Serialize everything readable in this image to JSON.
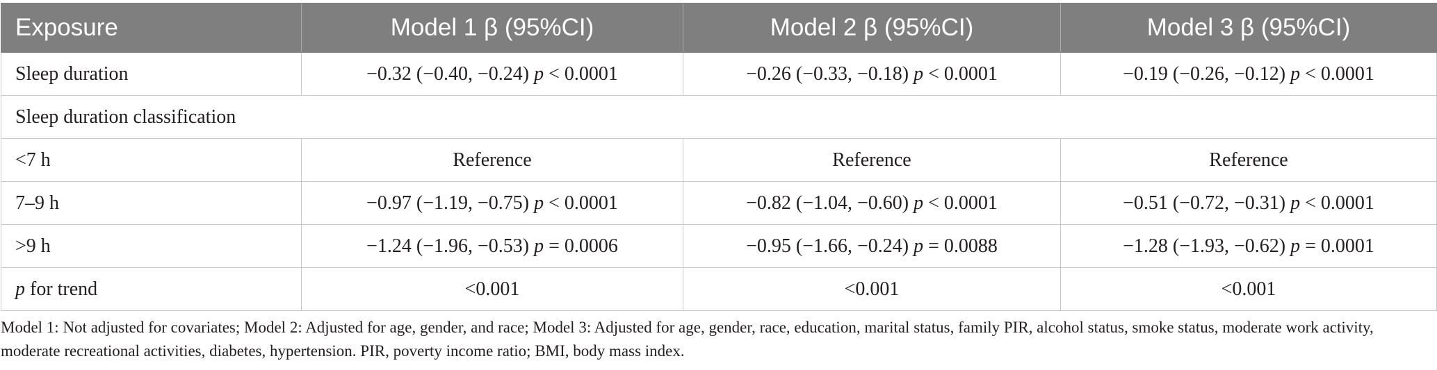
{
  "table": {
    "headers": [
      "Exposure",
      "Model 1 β (95%CI)",
      "Model 2 β (95%CI)",
      "Model 3 β (95%CI)"
    ],
    "rows": [
      {
        "label": "Sleep duration",
        "cells": [
          {
            "estimate": "−0.32 (−0.40, −0.24)",
            "p_symbol": "p",
            "p_value": "< 0.0001"
          },
          {
            "estimate": "−0.26 (−0.33, −0.18)",
            "p_symbol": "p",
            "p_value": "< 0.0001"
          },
          {
            "estimate": "−0.19 (−0.26, −0.12)",
            "p_symbol": "p",
            "p_value": "< 0.0001"
          }
        ]
      },
      {
        "section": "Sleep duration classification"
      },
      {
        "label": "<7 h",
        "cells": [
          "Reference",
          "Reference",
          "Reference"
        ]
      },
      {
        "label": "7–9 h",
        "cells": [
          {
            "estimate": "−0.97 (−1.19, −0.75)",
            "p_symbol": "p",
            "p_value": "< 0.0001"
          },
          {
            "estimate": "−0.82 (−1.04, −0.60)",
            "p_symbol": "p",
            "p_value": "< 0.0001"
          },
          {
            "estimate": "−0.51 (−0.72, −0.31)",
            "p_symbol": "p",
            "p_value": "< 0.0001"
          }
        ]
      },
      {
        "label": ">9 h",
        "cells": [
          {
            "estimate": "−1.24 (−1.96, −0.53)",
            "p_symbol": "p",
            "p_value": "= 0.0006"
          },
          {
            "estimate": "−0.95 (−1.66, −0.24)",
            "p_symbol": "p",
            "p_value": "= 0.0088"
          },
          {
            "estimate": "−1.28 (−1.93, −0.62)",
            "p_symbol": "p",
            "p_value": "= 0.0001"
          }
        ]
      },
      {
        "label_italic": "p",
        "label_rest": "for trend",
        "cells": [
          "<0.001",
          "<0.001",
          "<0.001"
        ]
      }
    ]
  },
  "footnote": "Model 1: Not adjusted for covariates; Model 2: Adjusted for age, gender, and race; Model 3: Adjusted for age, gender, race, education, marital status, family PIR, alcohol status, smoke status, moderate work activity, moderate recreational activities, diabetes, hypertension. PIR, poverty income ratio; BMI, body mass index.",
  "colors": {
    "header_background": "#7f7f7f",
    "header_text": "#ffffff",
    "grid_line": "#c8c8c8",
    "body_text": "#231f20"
  }
}
